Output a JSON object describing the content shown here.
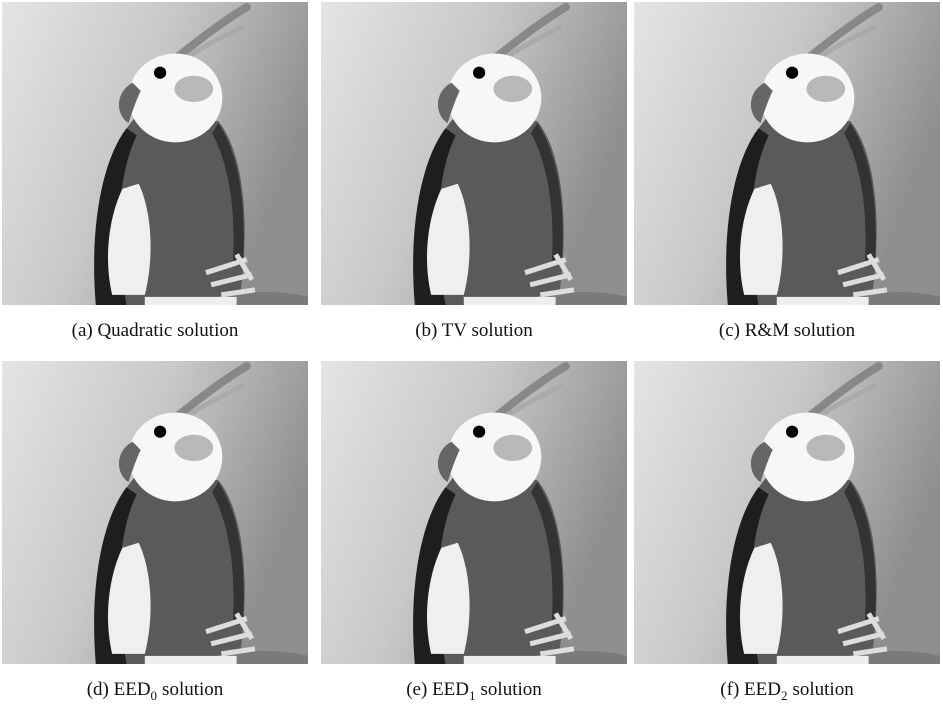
{
  "figure": {
    "panels": [
      {
        "caption": {
          "prefix": "(a) Quadratic solution"
        }
      },
      {
        "caption": {
          "prefix": "(b) TV solution"
        }
      },
      {
        "caption": {
          "prefix": "(c) R&M solution"
        }
      },
      {
        "caption": {
          "prefix": "(d) EED",
          "subscript": "0",
          "suffix": "solution"
        }
      },
      {
        "caption": {
          "prefix": "(e) EED",
          "subscript": "1",
          "suffix": "solution"
        }
      },
      {
        "caption": {
          "prefix": "(f) EED",
          "subscript": "2",
          "suffix": "solution"
        }
      }
    ]
  }
}
